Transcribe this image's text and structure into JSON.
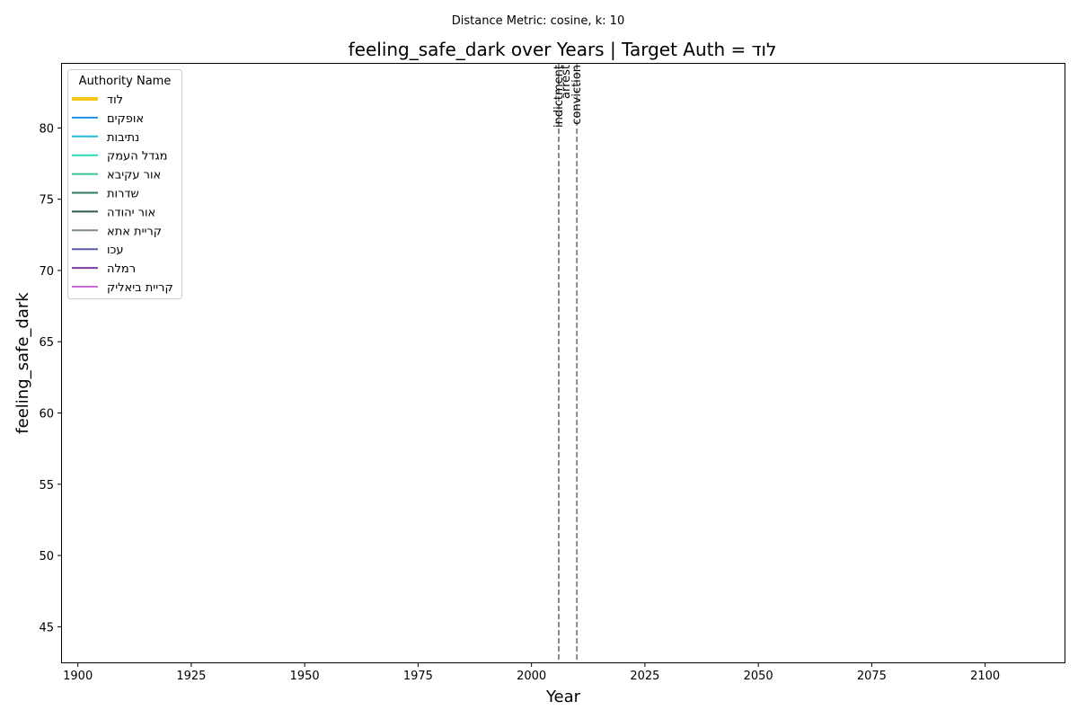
{
  "chart_data": {
    "type": "line",
    "suptitle": "Distance Metric: cosine, k: 10",
    "title": "feeling_safe_dark over Years | Target Auth = לוד",
    "xlabel": "Year",
    "ylabel": "feeling_safe_dark",
    "xlim": [
      1896.5,
      2117.5
    ],
    "ylim": [
      42.5,
      84.5
    ],
    "xticks": [
      1900,
      1925,
      1950,
      1975,
      2000,
      2025,
      2050,
      2075,
      2100
    ],
    "yticks": [
      45,
      50,
      55,
      60,
      65,
      70,
      75,
      80
    ],
    "grid": false,
    "legend": {
      "title": "Authority Name",
      "placement": "top-left",
      "entries": [
        {
          "name": "לוד",
          "color": "#f5c518",
          "target": true
        },
        {
          "name": "אופקים",
          "color": "#1f8fe6",
          "target": false
        },
        {
          "name": "נתיבות",
          "color": "#22bcd6",
          "target": false
        },
        {
          "name": "מגדל העמק",
          "color": "#2bd9b8",
          "target": false
        },
        {
          "name": "אור עקיבא",
          "color": "#3dc491",
          "target": false
        },
        {
          "name": "שדרות",
          "color": "#2e7d5b",
          "target": false
        },
        {
          "name": "אור יהודה",
          "color": "#2f5a4a",
          "target": false
        },
        {
          "name": "קריית אתא",
          "color": "#7f8c88",
          "target": false
        },
        {
          "name": "עכו",
          "color": "#5a5aa8",
          "target": false
        },
        {
          "name": "רמלה",
          "color": "#7d3ca0",
          "target": false
        },
        {
          "name": "קריית ביאליק",
          "color": "#cc6ad6",
          "target": false
        }
      ]
    },
    "series": [],
    "annotations": [
      {
        "x": 2006,
        "labels": [
          "indictment",
          "arrest"
        ]
      },
      {
        "x": 2010,
        "labels": [
          "conviction"
        ]
      }
    ]
  }
}
